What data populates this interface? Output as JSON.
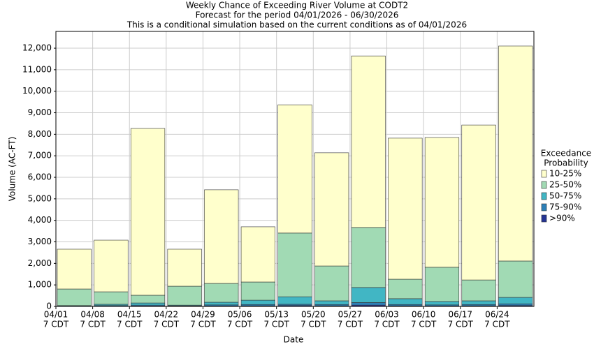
{
  "chart_data": {
    "type": "stacked_bar",
    "title": "Weekly Chance of Exceeding River Volume at CODT2",
    "subtitle": [
      "Forecast for the period 04/01/2026 - 06/30/2026",
      "This is a conditional simulation based on the current conditions as of 04/01/2026"
    ],
    "x_label": "Date",
    "y_label": "Volume (AC-FT)",
    "legend_title": [
      "Exceedance",
      "Probability"
    ],
    "categories": [
      [
        "04/01",
        "7 CDT"
      ],
      [
        "04/08",
        "7 CDT"
      ],
      [
        "04/15",
        "7 CDT"
      ],
      [
        "04/22",
        "7 CDT"
      ],
      [
        "04/29",
        "7 CDT"
      ],
      [
        "05/06",
        "7 CDT"
      ],
      [
        "05/13",
        "7 CDT"
      ],
      [
        "05/20",
        "7 CDT"
      ],
      [
        "05/27",
        "7 CDT"
      ],
      [
        "06/03",
        "7 CDT"
      ],
      [
        "06/10",
        "7 CDT"
      ],
      [
        "06/17",
        "7 CDT"
      ],
      [
        "06/24",
        "7 CDT"
      ]
    ],
    "series": [
      {
        "name": ">90%",
        "color": "#253494",
        "values": [
          5,
          10,
          20,
          10,
          20,
          30,
          40,
          30,
          60,
          30,
          20,
          30,
          40
        ]
      },
      {
        "name": "75-90%",
        "color": "#2c7fb8",
        "values": [
          10,
          30,
          40,
          20,
          50,
          60,
          60,
          60,
          120,
          60,
          50,
          60,
          80
        ]
      },
      {
        "name": "50-75%",
        "color": "#41b6c4",
        "values": [
          25,
          60,
          100,
          30,
          125,
          200,
          350,
          170,
          700,
          270,
          160,
          170,
          300
        ]
      },
      {
        "name": "25-50%",
        "color": "#a1dab4",
        "values": [
          770,
          580,
          360,
          880,
          875,
          845,
          2960,
          1620,
          2790,
          905,
          1590,
          970,
          1690
        ]
      },
      {
        "name": "10-25%",
        "color": "#ffffcc",
        "values": [
          1850,
          2400,
          7750,
          1720,
          4350,
          2565,
          5960,
          5260,
          7970,
          6555,
          6030,
          7200,
          9990
        ]
      }
    ],
    "ylim": [
      0,
      12780
    ],
    "yticks": [
      0,
      {
        "value": 1000,
        "label": "1,000"
      },
      {
        "value": 2000,
        "label": "2,000"
      },
      {
        "value": 3000,
        "label": "3,000"
      },
      {
        "value": 4000,
        "label": "4,000"
      },
      {
        "value": 5000,
        "label": "5,000"
      },
      {
        "value": 6000,
        "label": "6,000"
      },
      {
        "value": 7000,
        "label": "7,000"
      },
      {
        "value": 8000,
        "label": "8,000"
      },
      {
        "value": 9000,
        "label": "9,000"
      },
      {
        "value": 10000,
        "label": "10,000"
      },
      {
        "value": 11000,
        "label": "11,000"
      },
      {
        "value": 12000,
        "label": "12,000"
      }
    ],
    "grid": true
  }
}
